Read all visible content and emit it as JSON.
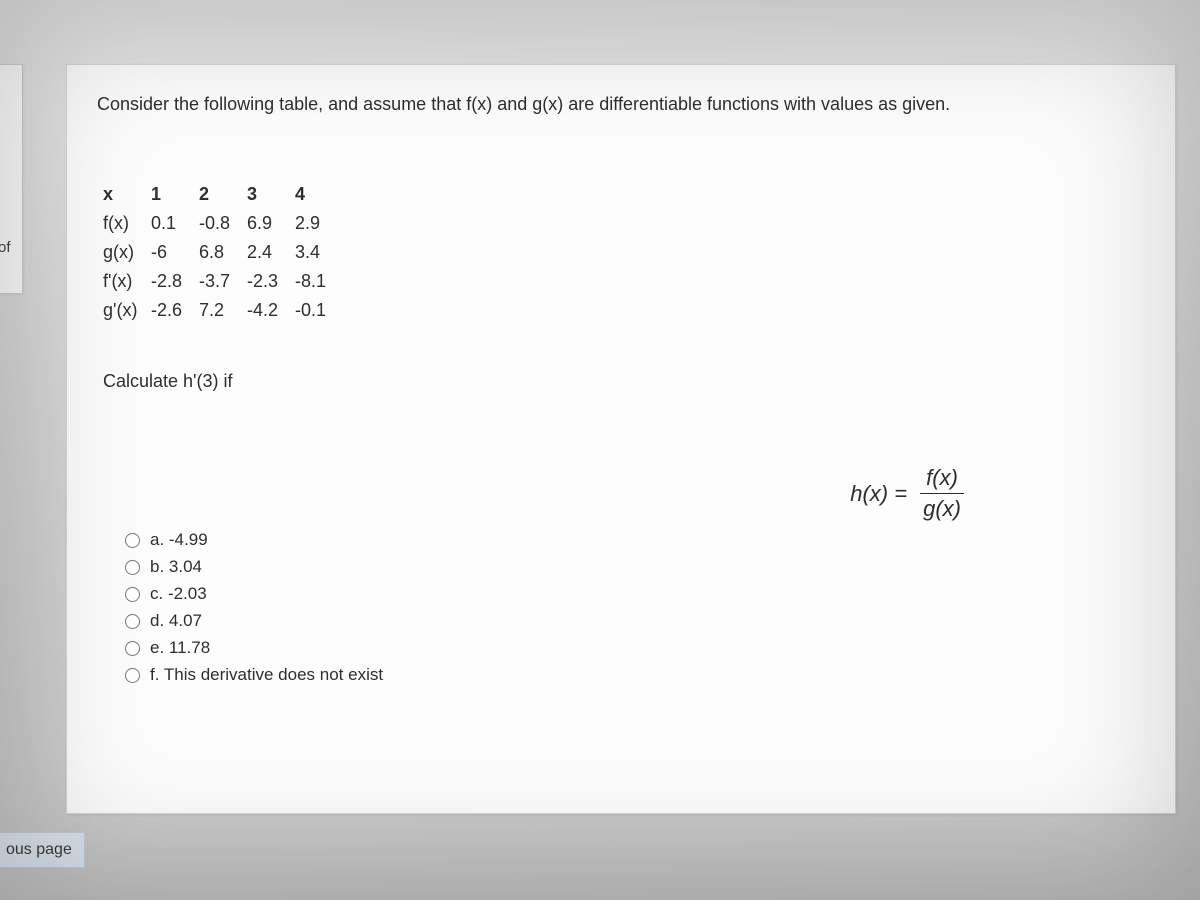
{
  "sidebar": {
    "progress_label_fragment": "of"
  },
  "nav": {
    "prev_page_label_fragment": "ous page"
  },
  "question": {
    "prompt": "Consider the following table, and assume that f(x) and g(x) are differentiable functions with values as given.",
    "table": {
      "row_headers": [
        "x",
        "f(x)",
        "g(x)",
        "f'(x)",
        "g'(x)"
      ],
      "columns": [
        "1",
        "2",
        "3",
        "4"
      ],
      "rows": [
        [
          "0.1",
          "-0.8",
          "6.9",
          "2.9"
        ],
        [
          "-6",
          "6.8",
          "2.4",
          "3.4"
        ],
        [
          "-2.8",
          "-3.7",
          "-2.3",
          "-8.1"
        ],
        [
          "-2.6",
          "7.2",
          "-4.2",
          "-0.1"
        ]
      ]
    },
    "calc_line": "Calculate h'(3) if",
    "formula": {
      "lhs": "h(x) =",
      "numerator": "f(x)",
      "denominator": "g(x)"
    },
    "options": [
      {
        "key": "a",
        "label": "a. -4.99"
      },
      {
        "key": "b",
        "label": "b. 3.04"
      },
      {
        "key": "c",
        "label": "c. -2.03"
      },
      {
        "key": "d",
        "label": "d. 4.07"
      },
      {
        "key": "e",
        "label": "e. 11.78"
      },
      {
        "key": "f",
        "label": "f. This derivative does not exist"
      }
    ]
  },
  "style": {
    "card_bg": "#fdfdfd",
    "text_color": "#2e2e2e",
    "prev_bg": "#dfe7ef"
  }
}
